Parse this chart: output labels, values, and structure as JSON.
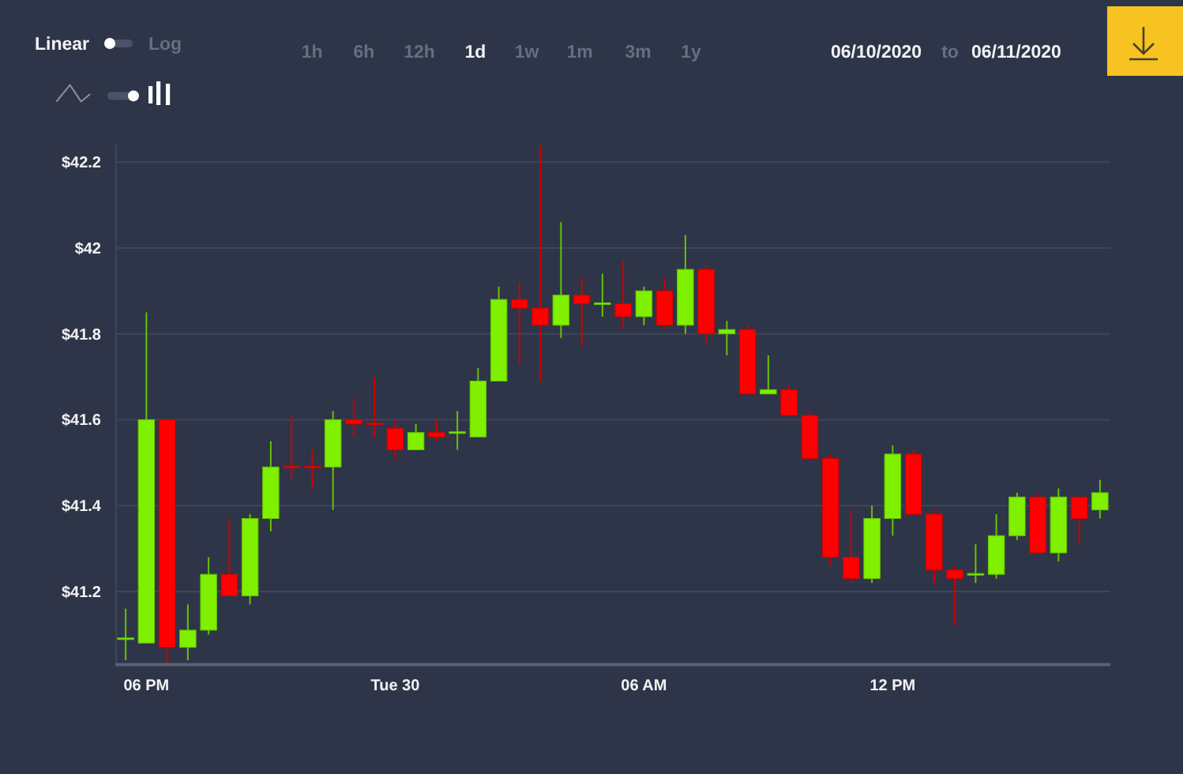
{
  "chart_data": {
    "type": "candlestick",
    "x": [
      "2020-06-29T17:30",
      "2020-06-29T18:00",
      "2020-06-29T18:30",
      "2020-06-29T19:00",
      "2020-06-29T19:30",
      "2020-06-29T20:00",
      "2020-06-29T20:30",
      "2020-06-29T21:00",
      "2020-06-29T21:30",
      "2020-06-29T22:00",
      "2020-06-29T22:30",
      "2020-06-29T23:00",
      "2020-06-29T23:30",
      "2020-06-30T00:00",
      "2020-06-30T00:30",
      "2020-06-30T01:00",
      "2020-06-30T01:30",
      "2020-06-30T02:00",
      "2020-06-30T02:30",
      "2020-06-30T03:00",
      "2020-06-30T03:30",
      "2020-06-30T04:00",
      "2020-06-30T04:30",
      "2020-06-30T05:00",
      "2020-06-30T05:30",
      "2020-06-30T06:00",
      "2020-06-30T06:30",
      "2020-06-30T07:00",
      "2020-06-30T07:30",
      "2020-06-30T08:00",
      "2020-06-30T08:30",
      "2020-06-30T09:00",
      "2020-06-30T09:30",
      "2020-06-30T10:00",
      "2020-06-30T10:30",
      "2020-06-30T11:00",
      "2020-06-30T11:30",
      "2020-06-30T12:00",
      "2020-06-30T12:30",
      "2020-06-30T13:00",
      "2020-06-30T13:30",
      "2020-06-30T14:00",
      "2020-06-30T14:30",
      "2020-06-30T15:00",
      "2020-06-30T15:30",
      "2020-06-30T16:00",
      "2020-06-30T16:30",
      "2020-06-30T17:00"
    ],
    "ohlc": [
      [
        41.09,
        41.16,
        41.04,
        41.09
      ],
      [
        41.08,
        41.85,
        41.08,
        41.6
      ],
      [
        41.6,
        41.6,
        41.03,
        41.07
      ],
      [
        41.07,
        41.17,
        41.04,
        41.11
      ],
      [
        41.11,
        41.28,
        41.1,
        41.24
      ],
      [
        41.24,
        41.37,
        41.19,
        41.19
      ],
      [
        41.19,
        41.38,
        41.17,
        41.37
      ],
      [
        41.37,
        41.55,
        41.34,
        41.49
      ],
      [
        41.49,
        41.61,
        41.46,
        41.49
      ],
      [
        41.49,
        41.53,
        41.44,
        41.49
      ],
      [
        41.49,
        41.62,
        41.39,
        41.6
      ],
      [
        41.6,
        41.65,
        41.56,
        41.59
      ],
      [
        41.59,
        41.7,
        41.56,
        41.59
      ],
      [
        41.58,
        41.6,
        41.51,
        41.53
      ],
      [
        41.53,
        41.59,
        41.53,
        41.57
      ],
      [
        41.57,
        41.6,
        41.55,
        41.56
      ],
      [
        41.57,
        41.62,
        41.53,
        41.57
      ],
      [
        41.56,
        41.72,
        41.56,
        41.69
      ],
      [
        41.69,
        41.91,
        41.69,
        41.88
      ],
      [
        41.88,
        41.92,
        41.73,
        41.86
      ],
      [
        41.86,
        42.24,
        41.69,
        41.82
      ],
      [
        41.82,
        42.06,
        41.79,
        41.89
      ],
      [
        41.89,
        41.93,
        41.77,
        41.87
      ],
      [
        41.87,
        41.94,
        41.84,
        41.87
      ],
      [
        41.87,
        41.97,
        41.81,
        41.84
      ],
      [
        41.84,
        41.91,
        41.82,
        41.9
      ],
      [
        41.9,
        41.93,
        41.81,
        41.82
      ],
      [
        41.82,
        42.03,
        41.8,
        41.95
      ],
      [
        41.95,
        41.96,
        41.78,
        41.8
      ],
      [
        41.8,
        41.83,
        41.75,
        41.81
      ],
      [
        41.81,
        41.82,
        41.66,
        41.66
      ],
      [
        41.66,
        41.75,
        41.66,
        41.67
      ],
      [
        41.67,
        41.68,
        41.61,
        41.61
      ],
      [
        41.61,
        41.62,
        41.51,
        41.51
      ],
      [
        41.51,
        41.52,
        41.26,
        41.28
      ],
      [
        41.28,
        41.39,
        41.22,
        41.23
      ],
      [
        41.23,
        41.4,
        41.22,
        41.37
      ],
      [
        41.37,
        41.54,
        41.33,
        41.52
      ],
      [
        41.52,
        41.53,
        41.38,
        41.38
      ],
      [
        41.38,
        41.39,
        41.22,
        41.25
      ],
      [
        41.25,
        41.26,
        41.12,
        41.23
      ],
      [
        41.24,
        41.31,
        41.22,
        41.24
      ],
      [
        41.24,
        41.38,
        41.23,
        41.33
      ],
      [
        41.33,
        41.43,
        41.32,
        41.42
      ],
      [
        41.42,
        41.43,
        41.29,
        41.29
      ],
      [
        41.29,
        41.44,
        41.27,
        41.42
      ],
      [
        41.42,
        41.42,
        41.31,
        41.37
      ],
      [
        41.39,
        41.46,
        41.37,
        41.43
      ]
    ],
    "colors": [
      "#7ef000",
      "#7ef000",
      "#ff0000",
      "#7ef000",
      "#7ef000",
      "#ff0000",
      "#7ef000",
      "#7ef000",
      "#ff0000",
      "#ff0000",
      "#7ef000",
      "#ff0000",
      "#ff0000",
      "#ff0000",
      "#7ef000",
      "#ff0000",
      "#7ef000",
      "#7ef000",
      "#7ef000",
      "#ff0000",
      "#ff0000",
      "#7ef000",
      "#ff0000",
      "#7ef000",
      "#ff0000",
      "#7ef000",
      "#ff0000",
      "#7ef000",
      "#ff0000",
      "#7ef000",
      "#ff0000",
      "#7ef000",
      "#ff0000",
      "#ff0000",
      "#ff0000",
      "#ff0000",
      "#7ef000",
      "#7ef000",
      "#ff0000",
      "#ff0000",
      "#ff0000",
      "#7ef000",
      "#7ef000",
      "#7ef000",
      "#ff0000",
      "#7ef000",
      "#ff0000",
      "#7ef000"
    ],
    "xlim": [
      "2020-06-29T17:15",
      "2020-06-30T17:15"
    ],
    "xticks": [
      {
        "value": "2020-06-29T18:00",
        "label": "06 PM"
      },
      {
        "value": "2020-06-30T00:00",
        "label": "Tue 30"
      },
      {
        "value": "2020-06-30T06:00",
        "label": "06 AM"
      },
      {
        "value": "2020-06-30T12:00",
        "label": "12 PM"
      }
    ],
    "ylim": [
      41.03,
      42.24
    ],
    "yticks": [
      {
        "value": 41.2,
        "label": "$41.2"
      },
      {
        "value": 41.4,
        "label": "$41.4"
      },
      {
        "value": 41.6,
        "label": "$41.6"
      },
      {
        "value": 41.8,
        "label": "$41.8"
      },
      {
        "value": 42,
        "label": "$42"
      },
      {
        "value": 42.2,
        "label": "$42.2"
      }
    ],
    "grid": "y",
    "annotations": [
      "Linear",
      "Log",
      "1h",
      "6h",
      "12h",
      "1d",
      "1w",
      "1m",
      "3m",
      "1y",
      "06/10/2020",
      "to",
      "06/11/2020"
    ]
  }
}
